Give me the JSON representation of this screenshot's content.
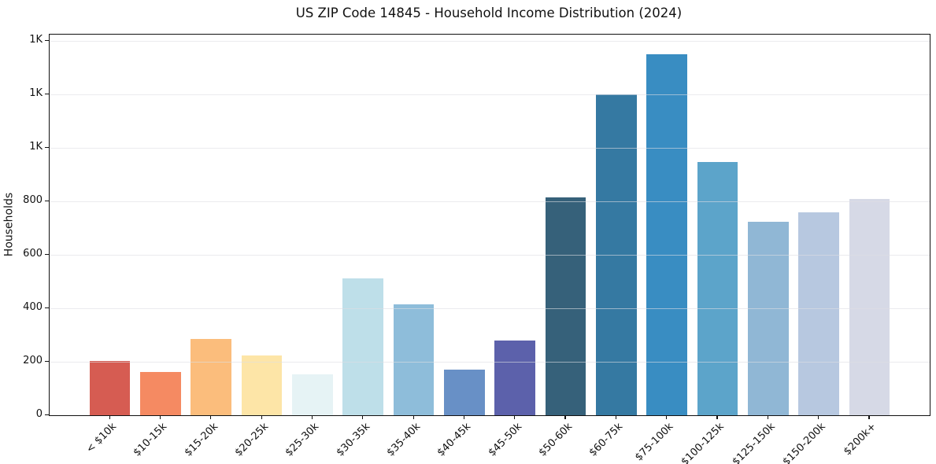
{
  "chart_data": {
    "type": "bar",
    "title": "US ZIP Code 14845 - Household Income Distribution (2024)",
    "xlabel": "",
    "ylabel": "Households",
    "categories": [
      "< $10k",
      "$10-15k",
      "$15-20k",
      "$20-25k",
      "$25-30k",
      "$30-35k",
      "$35-40k",
      "$40-45k",
      "$45-50k",
      "$50-60k",
      "$60-75k",
      "$75-100k",
      "$100-125k",
      "$125-150k",
      "$150-200k",
      "$200k+"
    ],
    "values": [
      203,
      163,
      286,
      224,
      153,
      511,
      415,
      171,
      280,
      814,
      1200,
      1351,
      947,
      724,
      759,
      808
    ],
    "bar_colors": [
      "#d65c52",
      "#f58a62",
      "#fbbd7c",
      "#fde5a7",
      "#e6f3f5",
      "#bedfe9",
      "#8ebdda",
      "#6890c6",
      "#5c61ab",
      "#36617a",
      "#3579a2",
      "#398dc2",
      "#5ca4ca",
      "#90b7d5",
      "#b7c8e0",
      "#d6d9e6"
    ],
    "yticks": [
      0,
      200,
      400,
      600,
      800,
      1000,
      1200,
      1400
    ],
    "ytick_labels": [
      "0",
      "200",
      "400",
      "600",
      "800",
      "1K",
      "1K",
      "1K"
    ],
    "ylim": [
      0,
      1424
    ],
    "xlim": [
      -1.19,
      16.19
    ],
    "bar_width_units": 0.8,
    "grid": "horizontal",
    "legend": "none"
  }
}
